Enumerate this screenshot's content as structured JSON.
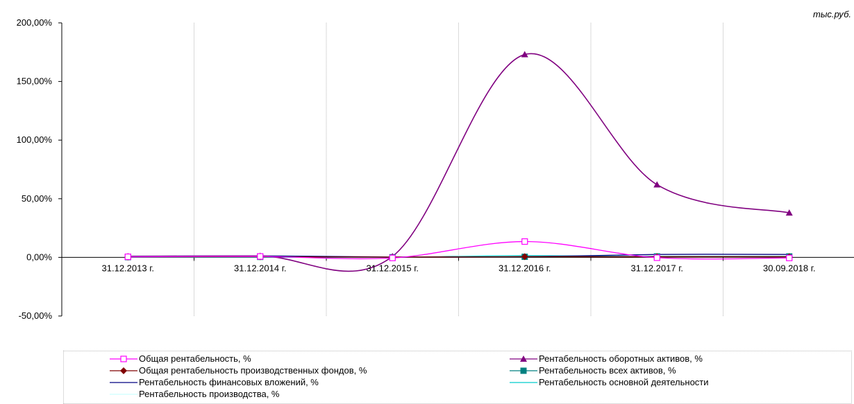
{
  "unit_label": "тыс.руб.",
  "chart_data": {
    "type": "line",
    "title": "",
    "xlabel": "",
    "ylabel": "",
    "categories": [
      "31.12.2013 г.",
      "31.12.2014 г.",
      "31.12.2015 г.",
      "31.12.2016 г.",
      "31.12.2017 г.",
      "30.09.2018 г."
    ],
    "y_ticks": [
      "200,00%",
      "150,00%",
      "100,00%",
      "50,00%",
      "0,00%",
      "-50,00%"
    ],
    "ylim": [
      -50,
      200
    ],
    "grid": "vertical",
    "smooth": true,
    "legend_position": "bottom",
    "series": [
      {
        "name": "Общая рентабельность, %",
        "color": "#ff00ff",
        "marker": "square-open",
        "values": [
          0.5,
          0.8,
          -0.5,
          13.5,
          -0.3,
          -0.5
        ]
      },
      {
        "name": "Рентабельность оборотных активов, %",
        "color": "#800080",
        "marker": "triangle",
        "values": [
          0.8,
          1.2,
          0.8,
          173,
          62,
          38
        ]
      },
      {
        "name": "Общая рентабельность производственных фондов, %",
        "color": "#800000",
        "marker": "diamond",
        "values": [
          0.3,
          0.5,
          0.2,
          0.6,
          0.5,
          0.5
        ]
      },
      {
        "name": "Рентабельность всех активов, %",
        "color": "#008080",
        "marker": "square",
        "values": [
          0.2,
          0.4,
          0.1,
          0.5,
          0.8,
          0.8
        ]
      },
      {
        "name": "Рентабельность финансовых вложений, %",
        "color": "#000080",
        "marker": "none",
        "values": [
          1.0,
          1.3,
          0.3,
          0.5,
          2.5,
          2.5
        ]
      },
      {
        "name": "Рентабельность основной деятельности",
        "color": "#00cccc",
        "marker": "none",
        "values": [
          0.1,
          0.1,
          0.1,
          1.5,
          0.6,
          0.6
        ]
      },
      {
        "name": "Рентабельность производства, %",
        "color": "#ccffff",
        "marker": "none",
        "values": [
          0.1,
          0.2,
          0.1,
          1.0,
          0.5,
          0.5
        ]
      }
    ]
  }
}
